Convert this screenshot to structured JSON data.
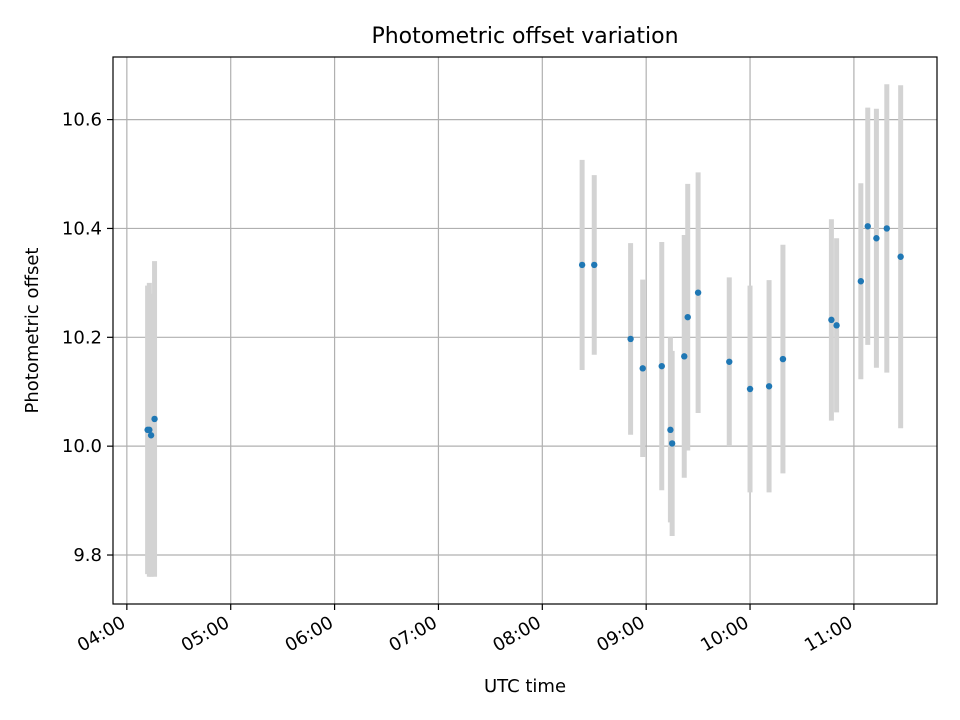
{
  "chart_data": {
    "type": "scatter",
    "title": "Photometric offset variation",
    "xlabel": "UTC time",
    "ylabel": "Photometric offset",
    "x_tick_labels": [
      "04:00",
      "05:00",
      "06:00",
      "07:00",
      "08:00",
      "09:00",
      "10:00",
      "11:00"
    ],
    "y_tick_labels": [
      "9.8",
      "10.0",
      "10.2",
      "10.4",
      "10.6"
    ],
    "xlim": [
      "03:52",
      "11:48"
    ],
    "ylim": [
      9.71,
      10.715
    ],
    "grid": true,
    "colors": {
      "points": "#1f77b4",
      "errorbars": "#d3d3d3",
      "grid": "#b0b0b0"
    },
    "points": [
      {
        "x": "04:12",
        "y": 10.03,
        "yerr": 0.265
      },
      {
        "x": "04:13",
        "y": 10.03,
        "yerr": 0.27
      },
      {
        "x": "04:14",
        "y": 10.02,
        "yerr": 0.26
      },
      {
        "x": "04:16",
        "y": 10.05,
        "yerr": 0.29
      },
      {
        "x": "08:23",
        "y": 10.333,
        "yerr": 0.193
      },
      {
        "x": "08:30",
        "y": 10.333,
        "yerr": 0.165
      },
      {
        "x": "08:51",
        "y": 10.197,
        "yerr": 0.176
      },
      {
        "x": "08:58",
        "y": 10.143,
        "yerr": 0.163
      },
      {
        "x": "09:09",
        "y": 10.147,
        "yerr": 0.228
      },
      {
        "x": "09:14",
        "y": 10.03,
        "yerr": 0.17
      },
      {
        "x": "09:15",
        "y": 10.005,
        "yerr": 0.17
      },
      {
        "x": "09:22",
        "y": 10.165,
        "yerr": 0.223
      },
      {
        "x": "09:24",
        "y": 10.237,
        "yerr": 0.245
      },
      {
        "x": "09:30",
        "y": 10.282,
        "yerr": 0.221
      },
      {
        "x": "09:48",
        "y": 10.155,
        "yerr": 0.155
      },
      {
        "x": "10:00",
        "y": 10.105,
        "yerr": 0.19
      },
      {
        "x": "10:11",
        "y": 10.11,
        "yerr": 0.195
      },
      {
        "x": "10:19",
        "y": 10.16,
        "yerr": 0.21
      },
      {
        "x": "10:47",
        "y": 10.232,
        "yerr": 0.185
      },
      {
        "x": "10:50",
        "y": 10.222,
        "yerr": 0.16
      },
      {
        "x": "11:04",
        "y": 10.303,
        "yerr": 0.18
      },
      {
        "x": "11:08",
        "y": 10.404,
        "yerr": 0.218
      },
      {
        "x": "11:13",
        "y": 10.382,
        "yerr": 0.238
      },
      {
        "x": "11:19",
        "y": 10.4,
        "yerr": 0.265
      },
      {
        "x": "11:27",
        "y": 10.348,
        "yerr": 0.315
      }
    ]
  }
}
